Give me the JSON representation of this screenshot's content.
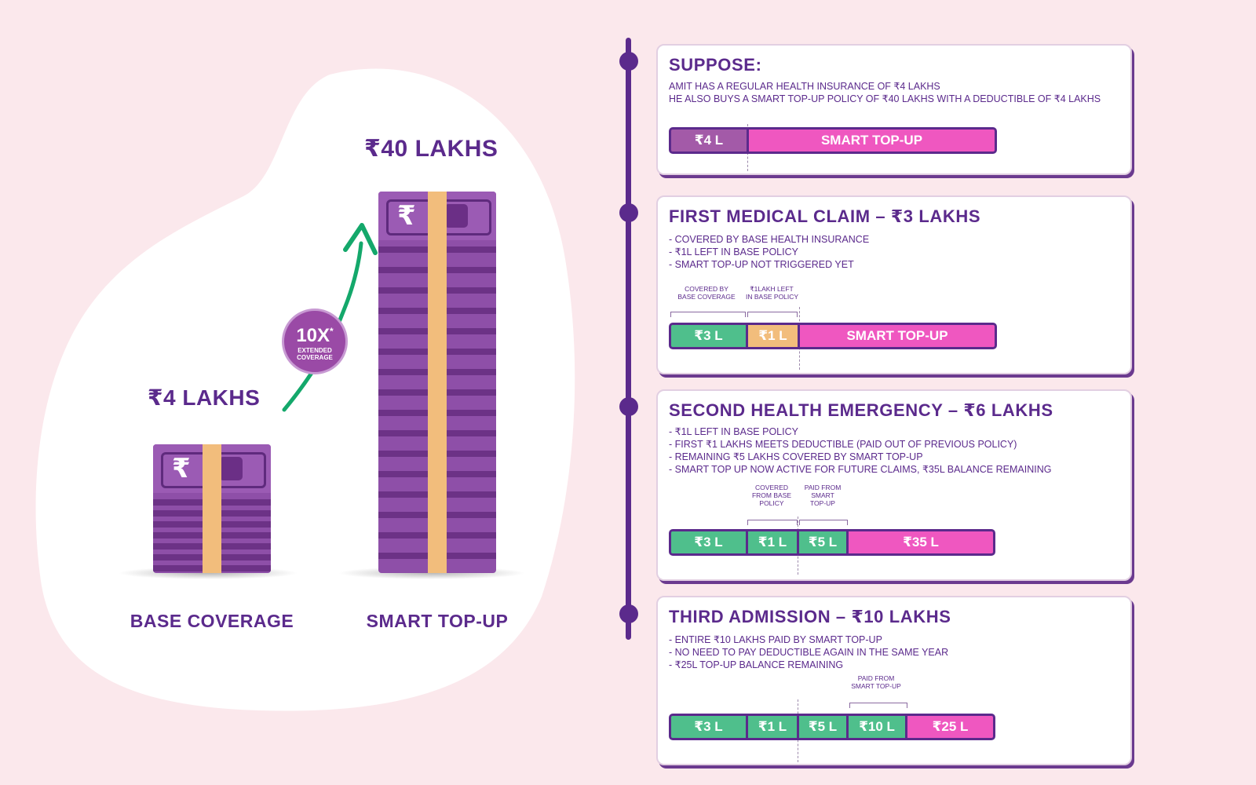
{
  "left": {
    "base_amount": "₹4 LAKHS",
    "topup_amount": "₹40 LAKHS",
    "base_label": "BASE COVERAGE",
    "topup_label": "SMART TOP-UP",
    "badge": {
      "multiplier": "10X",
      "asterisk": "*",
      "line1": "EXTENDED",
      "line2": "COVERAGE"
    },
    "rupee_symbol": "₹"
  },
  "cards": [
    {
      "title": "SUPPOSE:",
      "lines": [
        "AMIT HAS A REGULAR HEALTH INSURANCE OF ₹4 LAKHS",
        "HE ALSO BUYS A SMART TOP-UP POLICY OF ₹40 LAKHS WITH A DEDUCTIBLE OF ₹4 LAKHS"
      ],
      "bar": [
        {
          "label": "₹4 L",
          "color": "purple"
        },
        {
          "label": "SMART TOP-UP",
          "color": "pink"
        }
      ]
    },
    {
      "title": "FIRST MEDICAL CLAIM – ₹3 LAKHS",
      "lines": [
        "- COVERED BY BASE HEALTH INSURANCE",
        "- ₹1L LEFT IN BASE POLICY",
        "- SMART TOP-UP NOT TRIGGERED YET"
      ],
      "annotations": [
        {
          "line1": "COVERED BY",
          "line2": "BASE COVERAGE"
        },
        {
          "line1": "₹1LAKH LEFT",
          "line2": "IN BASE POLICY"
        }
      ],
      "bar": [
        {
          "label": "₹3 L",
          "color": "green"
        },
        {
          "label": "₹1 L",
          "color": "orange"
        },
        {
          "label": "SMART TOP-UP",
          "color": "pink"
        }
      ]
    },
    {
      "title": "SECOND HEALTH EMERGENCY – ₹6 LAKHS",
      "lines": [
        "- ₹1L LEFT IN BASE POLICY",
        "- FIRST ₹1 LAKHS MEETS DEDUCTIBLE (PAID OUT OF PREVIOUS POLICY)",
        "- REMAINING ₹5 LAKHS COVERED BY SMART TOP-UP",
        "- SMART TOP UP NOW ACTIVE FOR FUTURE CLAIMS, ₹35L BALANCE REMAINING"
      ],
      "annotations": [
        {
          "line1": "COVERED",
          "line2": "FROM BASE",
          "line3": "POLICY"
        },
        {
          "line1": "PAID FROM",
          "line2": "SMART",
          "line3": "TOP-UP"
        }
      ],
      "bar": [
        {
          "label": "₹3 L",
          "color": "green"
        },
        {
          "label": "₹1 L",
          "color": "green"
        },
        {
          "label": "₹5 L",
          "color": "green"
        },
        {
          "label": "₹35 L",
          "color": "pink"
        }
      ]
    },
    {
      "title": "THIRD ADMISSION – ₹10 LAKHS",
      "lines": [
        "- ENTIRE ₹10 LAKHS PAID BY SMART TOP-UP",
        "- NO NEED TO PAY DEDUCTIBLE AGAIN IN THE SAME YEAR",
        "- ₹25L TOP-UP BALANCE REMAINING"
      ],
      "annotations": [
        {
          "line1": "PAID FROM",
          "line2": "SMART TOP-UP"
        }
      ],
      "bar": [
        {
          "label": "₹3 L",
          "color": "green"
        },
        {
          "label": "₹1 L",
          "color": "green"
        },
        {
          "label": "₹5 L",
          "color": "green"
        },
        {
          "label": "₹10 L",
          "color": "green"
        },
        {
          "label": "₹25 L",
          "color": "pink"
        }
      ]
    }
  ],
  "colors": {
    "background": "#fbe8ec",
    "brand_purple": "#5b2a8c",
    "green": "#4fbf8c",
    "orange": "#f2bd7c",
    "pink": "#ef57c0",
    "arrow_green": "#14a86b"
  }
}
